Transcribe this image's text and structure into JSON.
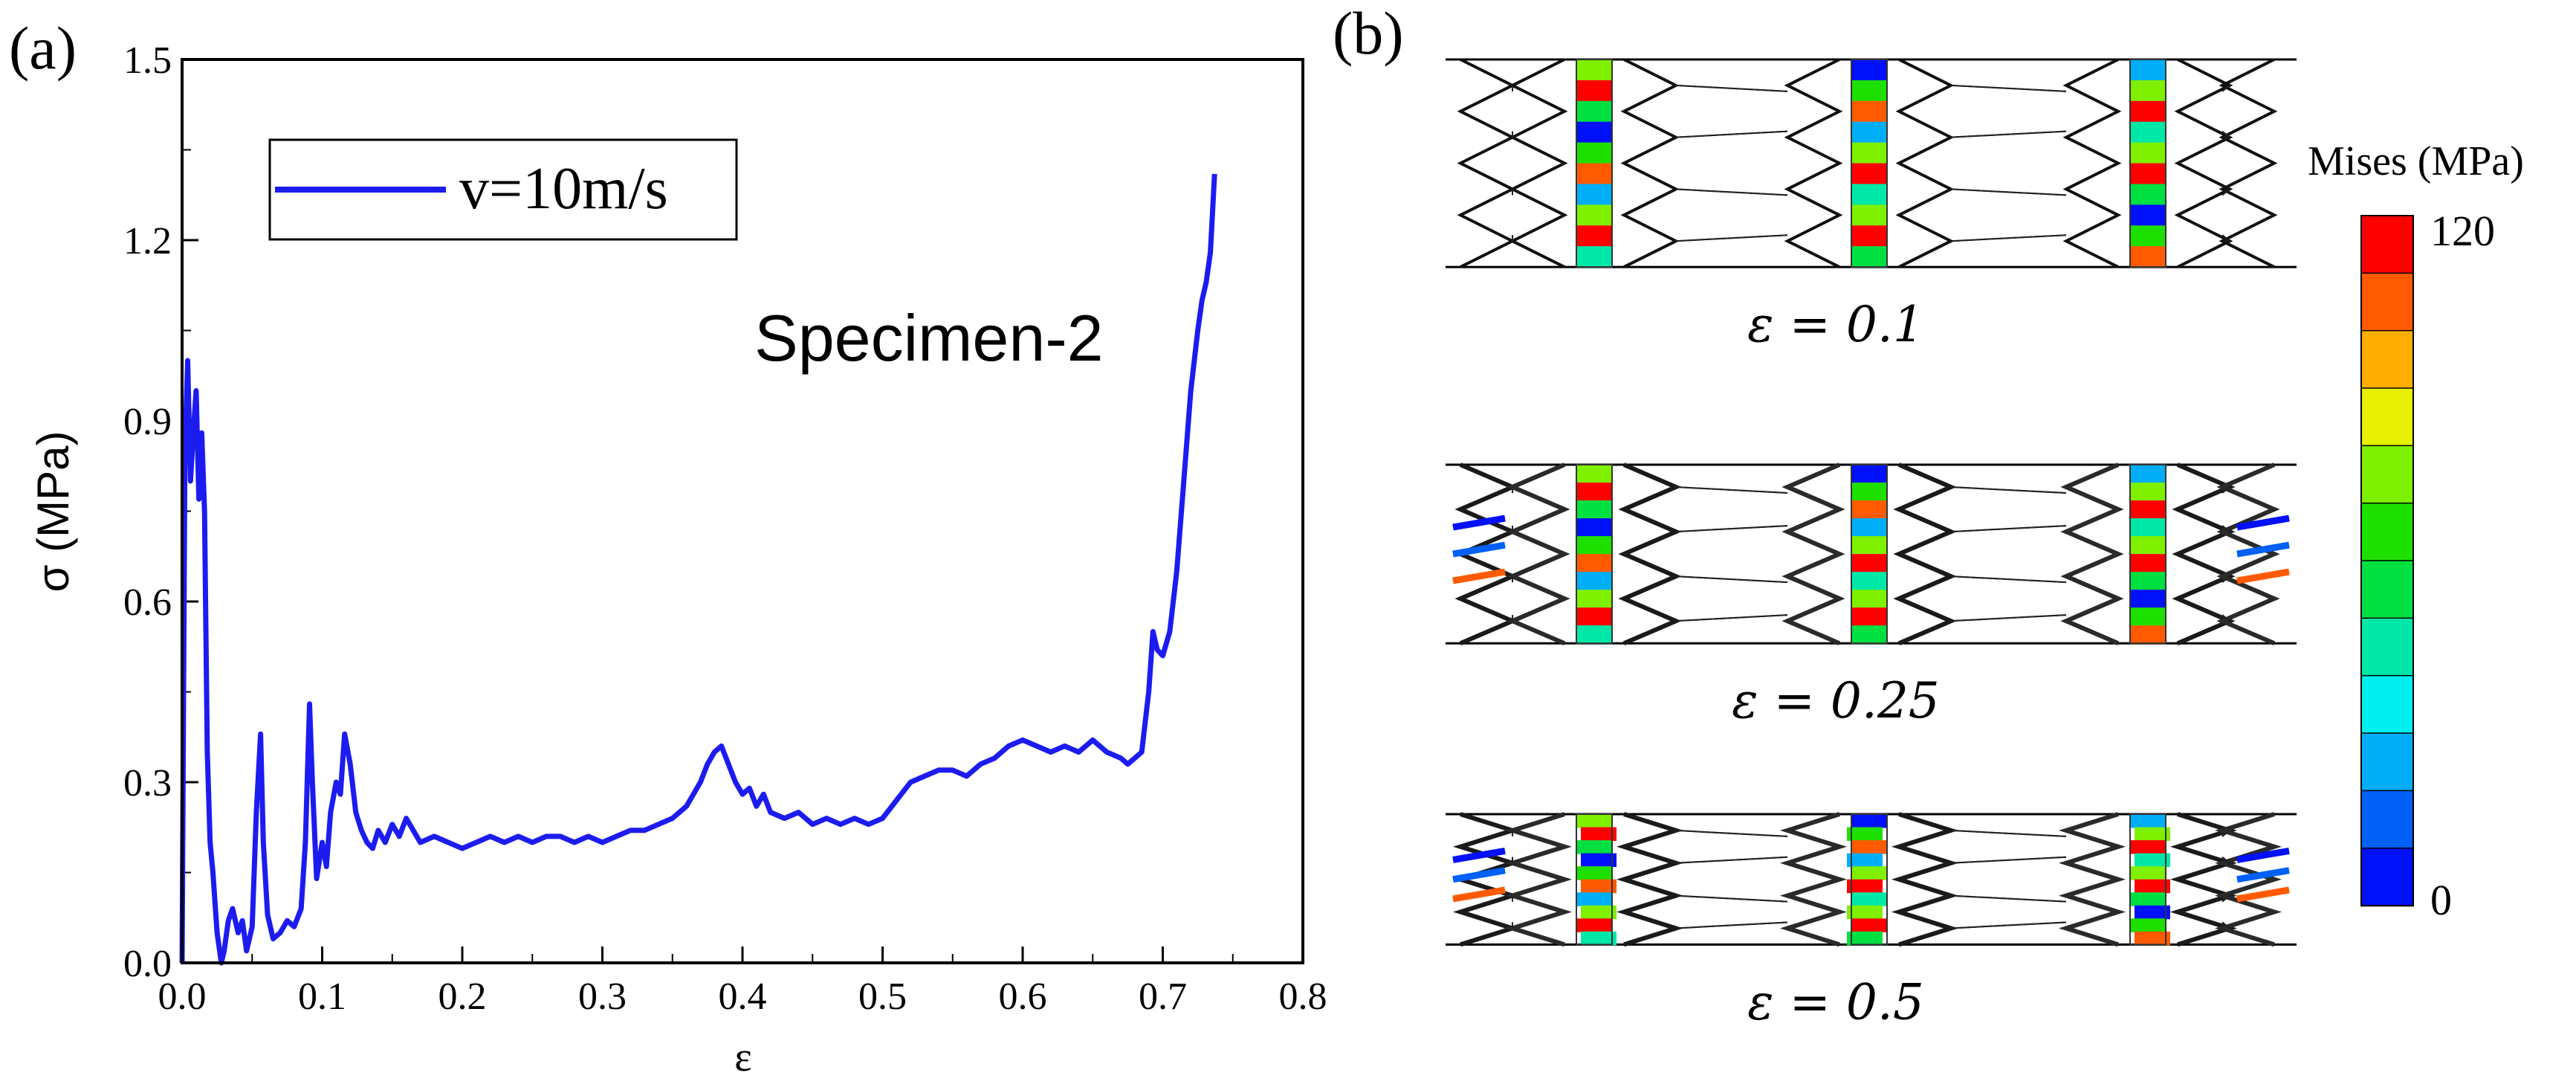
{
  "panel_a": {
    "label": "(a)",
    "annotation": "Specimen-2",
    "chart_data": {
      "type": "line",
      "title": "",
      "xlabel": "ε",
      "ylabel": "σ (MPa)",
      "xlim": [
        0.0,
        0.8
      ],
      "ylim": [
        0.0,
        1.5
      ],
      "xticks": [
        "0.0",
        "0.1",
        "0.2",
        "0.3",
        "0.4",
        "0.5",
        "0.6",
        "0.7",
        "0.8"
      ],
      "yticks": [
        "0.0",
        "0.3",
        "0.6",
        "0.9",
        "1.2",
        "1.5"
      ],
      "legend_position": "top-left",
      "series": [
        {
          "name": "v=10m/s",
          "color": "#1c1cf0",
          "x": [
            0.0,
            0.002,
            0.004,
            0.006,
            0.008,
            0.01,
            0.012,
            0.014,
            0.016,
            0.018,
            0.02,
            0.022,
            0.025,
            0.028,
            0.03,
            0.033,
            0.036,
            0.04,
            0.043,
            0.046,
            0.05,
            0.053,
            0.056,
            0.058,
            0.061,
            0.065,
            0.07,
            0.075,
            0.08,
            0.085,
            0.088,
            0.091,
            0.093,
            0.096,
            0.1,
            0.103,
            0.106,
            0.11,
            0.113,
            0.116,
            0.12,
            0.124,
            0.128,
            0.132,
            0.136,
            0.14,
            0.145,
            0.15,
            0.155,
            0.16,
            0.165,
            0.17,
            0.18,
            0.19,
            0.2,
            0.21,
            0.22,
            0.23,
            0.24,
            0.25,
            0.26,
            0.27,
            0.28,
            0.29,
            0.3,
            0.31,
            0.32,
            0.33,
            0.34,
            0.35,
            0.36,
            0.365,
            0.37,
            0.375,
            0.38,
            0.385,
            0.39,
            0.395,
            0.4,
            0.405,
            0.41,
            0.415,
            0.42,
            0.43,
            0.44,
            0.45,
            0.46,
            0.47,
            0.48,
            0.49,
            0.5,
            0.51,
            0.52,
            0.53,
            0.54,
            0.55,
            0.56,
            0.57,
            0.58,
            0.59,
            0.6,
            0.61,
            0.62,
            0.63,
            0.64,
            0.65,
            0.66,
            0.67,
            0.675,
            0.68,
            0.685,
            0.69,
            0.693,
            0.696,
            0.7,
            0.705,
            0.71,
            0.715,
            0.72,
            0.725,
            0.728,
            0.731,
            0.734,
            0.737
          ],
          "y": [
            0.0,
            0.85,
            1.0,
            0.8,
            0.88,
            0.95,
            0.77,
            0.88,
            0.75,
            0.35,
            0.2,
            0.15,
            0.05,
            0.0,
            0.02,
            0.07,
            0.09,
            0.05,
            0.07,
            0.02,
            0.06,
            0.25,
            0.38,
            0.2,
            0.08,
            0.04,
            0.05,
            0.07,
            0.06,
            0.09,
            0.2,
            0.43,
            0.3,
            0.14,
            0.2,
            0.16,
            0.25,
            0.3,
            0.28,
            0.38,
            0.33,
            0.25,
            0.22,
            0.2,
            0.19,
            0.22,
            0.2,
            0.23,
            0.21,
            0.24,
            0.22,
            0.2,
            0.21,
            0.2,
            0.19,
            0.2,
            0.21,
            0.2,
            0.21,
            0.2,
            0.21,
            0.21,
            0.2,
            0.21,
            0.2,
            0.21,
            0.22,
            0.22,
            0.23,
            0.24,
            0.26,
            0.28,
            0.3,
            0.33,
            0.35,
            0.36,
            0.33,
            0.3,
            0.28,
            0.29,
            0.26,
            0.28,
            0.25,
            0.24,
            0.25,
            0.23,
            0.24,
            0.23,
            0.24,
            0.23,
            0.24,
            0.27,
            0.3,
            0.31,
            0.32,
            0.32,
            0.31,
            0.33,
            0.34,
            0.36,
            0.37,
            0.36,
            0.35,
            0.36,
            0.35,
            0.37,
            0.35,
            0.34,
            0.33,
            0.34,
            0.35,
            0.45,
            0.55,
            0.52,
            0.51,
            0.55,
            0.65,
            0.8,
            0.95,
            1.05,
            1.1,
            1.13,
            1.18,
            1.31
          ]
        }
      ]
    }
  },
  "panel_b": {
    "label": "(b)",
    "colorbar": {
      "title": "Mises (MPa)",
      "max_label": "120",
      "min_label": "0",
      "colors": [
        "#ff0000",
        "#ff5a00",
        "#ffae00",
        "#e6f000",
        "#7ef000",
        "#1ee000",
        "#00e040",
        "#00e8a8",
        "#00f0f0",
        "#00aef8",
        "#0060f8",
        "#0010f8"
      ]
    },
    "snapshots": [
      {
        "strain_label": "ε = 0.1",
        "compression": 0.1
      },
      {
        "strain_label": "ε = 0.25",
        "compression": 0.25
      },
      {
        "strain_label": "ε = 0.5",
        "compression": 0.5
      }
    ]
  }
}
